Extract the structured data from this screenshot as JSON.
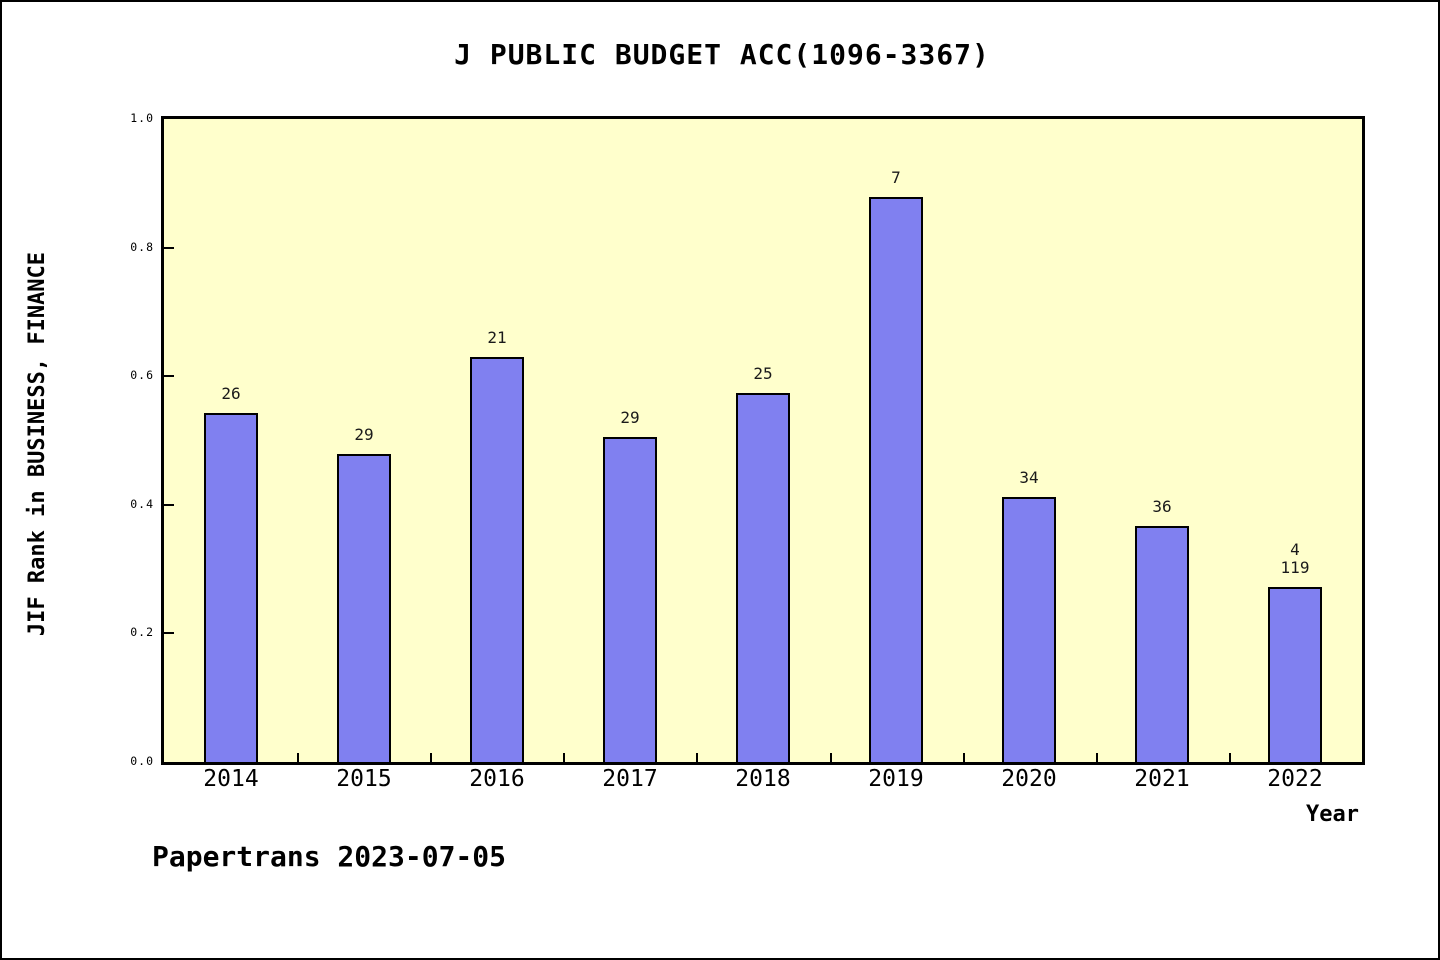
{
  "chart_data": {
    "type": "bar",
    "title": "J PUBLIC BUDGET ACC(1096-3367)",
    "xlabel": "Year",
    "ylabel": "JIF Rank in BUSINESS, FINANCE",
    "categories": [
      "2014",
      "2015",
      "2016",
      "2017",
      "2018",
      "2019",
      "2020",
      "2021",
      "2022"
    ],
    "values": [
      0.543,
      0.479,
      0.63,
      0.505,
      0.574,
      0.878,
      0.412,
      0.367,
      0.272
    ],
    "bar_labels": [
      [
        "26"
      ],
      [
        "29"
      ],
      [
        "21"
      ],
      [
        "29"
      ],
      [
        "25"
      ],
      [
        "7"
      ],
      [
        "34"
      ],
      [
        "36"
      ],
      [
        "4",
        "119"
      ]
    ],
    "ylim": [
      0.0,
      1.0
    ],
    "yticks": [
      0.0,
      0.2,
      0.4,
      0.6,
      0.8,
      1.0
    ],
    "grid": false,
    "legend": "none",
    "bar_color": "#8080F0",
    "bar_edge_color": "#000000",
    "plot_bg_color": "#FFFFCC",
    "outer_bg_color": "#FFFFFF"
  },
  "footer": {
    "watermark": "Papertrans 2023-07-05"
  }
}
